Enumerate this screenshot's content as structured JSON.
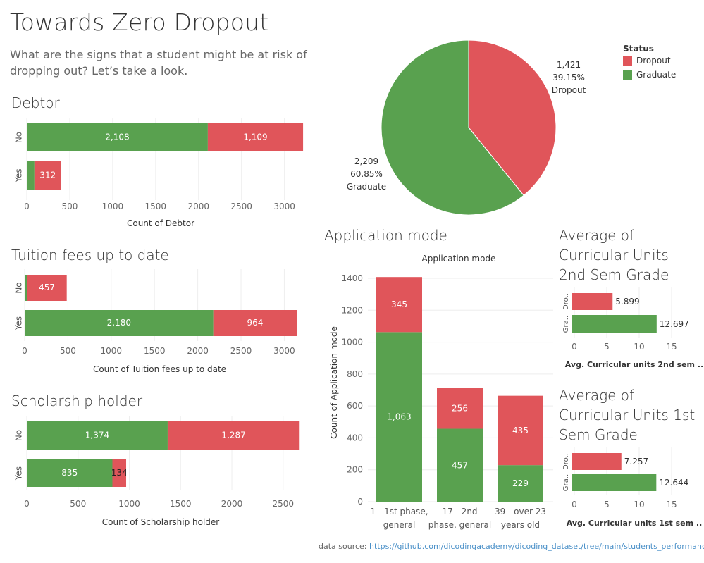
{
  "header": {
    "title": "Towards Zero Dropout",
    "subtitle": "What are the signs that a student might be at risk of dropping out? Let’s take a look."
  },
  "colors": {
    "dropout": "#e0555a",
    "graduate": "#59a14f"
  },
  "legend": {
    "title": "Status",
    "items": [
      "Dropout",
      "Graduate"
    ]
  },
  "footer": {
    "source_label": "data source:",
    "source_link": "https://github.com/dicodingacademy/dicoding_dataset/tree/main/students_performance"
  },
  "chart_data": [
    {
      "id": "debtor",
      "type": "bar",
      "orientation": "horizontal",
      "stacked": true,
      "title": "Debtor",
      "xlabel": "Count of Debtor",
      "ylabel": "",
      "categories": [
        "No",
        "Yes"
      ],
      "series": [
        {
          "name": "Graduate",
          "values": [
            2108,
            89
          ],
          "labels": [
            "2,108",
            ""
          ]
        },
        {
          "name": "Dropout",
          "values": [
            1109,
            312
          ],
          "labels": [
            "1,109",
            "312"
          ]
        }
      ],
      "xlim": [
        0,
        3250
      ],
      "ticks": [
        0,
        500,
        1000,
        1500,
        2000,
        2500,
        3000
      ],
      "tick_labels": [
        "0",
        "500",
        "1000",
        "1500",
        "2000",
        "2500",
        "3000"
      ]
    },
    {
      "id": "tuition",
      "type": "bar",
      "orientation": "horizontal",
      "stacked": true,
      "title": "Tuition fees up to date",
      "xlabel": "Count of Tuition fees up to date",
      "ylabel": "",
      "categories": [
        "No",
        "Yes"
      ],
      "series": [
        {
          "name": "Graduate",
          "values": [
            29,
            2180
          ],
          "labels": [
            "",
            "2,180"
          ]
        },
        {
          "name": "Dropout",
          "values": [
            457,
            964
          ],
          "labels": [
            "457",
            "964"
          ]
        }
      ],
      "xlim": [
        0,
        3250
      ],
      "ticks": [
        0,
        500,
        1000,
        1500,
        2000,
        2500,
        3000
      ],
      "tick_labels": [
        "0",
        "500",
        "1000",
        "1500",
        "2000",
        "2500",
        "3000"
      ]
    },
    {
      "id": "scholarship",
      "type": "bar",
      "orientation": "horizontal",
      "stacked": true,
      "title": "Scholarship holder",
      "xlabel": "Count of Scholarship holder",
      "ylabel": "",
      "categories": [
        "No",
        "Yes"
      ],
      "series": [
        {
          "name": "Graduate",
          "values": [
            1374,
            835
          ],
          "labels": [
            "1,374",
            "835"
          ]
        },
        {
          "name": "Dropout",
          "values": [
            1287,
            134
          ],
          "labels": [
            "1,287",
            "134"
          ]
        }
      ],
      "xlim": [
        0,
        2750
      ],
      "ticks": [
        0,
        500,
        1000,
        1500,
        2000,
        2500
      ],
      "tick_labels": [
        "0",
        "500",
        "1000",
        "1500",
        "2000",
        "2500"
      ]
    },
    {
      "id": "status-pie",
      "type": "pie",
      "title": "",
      "slices": [
        {
          "name": "Dropout",
          "value": 1421,
          "count_label": "1,421",
          "pct_label": "39.15%"
        },
        {
          "name": "Graduate",
          "value": 2209,
          "count_label": "2,209",
          "pct_label": "60.85%"
        }
      ]
    },
    {
      "id": "application",
      "type": "bar",
      "orientation": "vertical",
      "stacked": true,
      "title": "Application mode",
      "subtitle": "Application mode",
      "xlabel": "",
      "ylabel": "Count of Application mode",
      "categories": [
        [
          "1 - 1st phase,",
          "general"
        ],
        [
          "17 - 2nd",
          "phase, general"
        ],
        [
          "39 - over 23",
          "years old"
        ]
      ],
      "series": [
        {
          "name": "Graduate",
          "values": [
            1063,
            457,
            229
          ],
          "labels": [
            "1,063",
            "457",
            "229"
          ]
        },
        {
          "name": "Dropout",
          "values": [
            345,
            256,
            435
          ],
          "labels": [
            "345",
            "256",
            "435"
          ]
        }
      ],
      "ylim": [
        0,
        1480
      ],
      "ticks": [
        0,
        200,
        400,
        600,
        800,
        1000,
        1200,
        1400
      ],
      "tick_labels": [
        "0",
        "200",
        "400",
        "600",
        "800",
        "1000",
        "1200",
        "1400"
      ]
    },
    {
      "id": "grade2",
      "type": "bar",
      "orientation": "horizontal",
      "title": "Average of Curricular Units 2nd Sem Grade",
      "xlabel": "Avg. Curricular units 2nd sem ..",
      "ylabel": "",
      "categories": [
        "Dro..",
        "Gra.."
      ],
      "values": [
        5.899,
        12.697
      ],
      "labels": [
        "5.899",
        "12.697"
      ],
      "series_names": [
        "Dropout",
        "Graduate"
      ],
      "xlim": [
        0,
        18.5
      ],
      "ticks": [
        0,
        5,
        10,
        15
      ],
      "tick_labels": [
        "0",
        "5",
        "10",
        "15"
      ]
    },
    {
      "id": "grade1",
      "type": "bar",
      "orientation": "horizontal",
      "title": "Average of Curricular Units 1st Sem Grade",
      "xlabel": "Avg. Curricular units 1st sem ..",
      "ylabel": "",
      "categories": [
        "Dro..",
        "Gra.."
      ],
      "values": [
        7.257,
        12.644
      ],
      "labels": [
        "7.257",
        "12.644"
      ],
      "series_names": [
        "Dropout",
        "Graduate"
      ],
      "xlim": [
        0,
        18.5
      ],
      "ticks": [
        0,
        5,
        10,
        15
      ],
      "tick_labels": [
        "0",
        "5",
        "10",
        "15"
      ]
    }
  ]
}
